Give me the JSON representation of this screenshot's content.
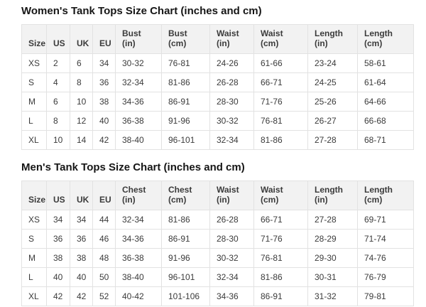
{
  "colors": {
    "header_background": "#f2f2f2",
    "border": "#e2e2e2",
    "text": "#3b3b3b",
    "title_text": "#161616",
    "page_background": "#ffffff"
  },
  "tables": {
    "women": {
      "title": "Women's Tank Tops Size Chart (inches and cm)",
      "columns": [
        [
          "Size"
        ],
        [
          "US"
        ],
        [
          "UK"
        ],
        [
          "EU"
        ],
        [
          "Bust",
          "(in)"
        ],
        [
          "Bust",
          "(cm)"
        ],
        [
          "Waist",
          "(in)"
        ],
        [
          "Waist",
          "(cm)"
        ],
        [
          "Length",
          "(in)"
        ],
        [
          "Length",
          "(cm)"
        ]
      ],
      "rows": [
        [
          "XS",
          "2",
          "6",
          "34",
          "30-32",
          "76-81",
          "24-26",
          "61-66",
          "23-24",
          "58-61"
        ],
        [
          "S",
          "4",
          "8",
          "36",
          "32-34",
          "81-86",
          "26-28",
          "66-71",
          "24-25",
          "61-64"
        ],
        [
          "M",
          "6",
          "10",
          "38",
          "34-36",
          "86-91",
          "28-30",
          "71-76",
          "25-26",
          "64-66"
        ],
        [
          "L",
          "8",
          "12",
          "40",
          "36-38",
          "91-96",
          "30-32",
          "76-81",
          "26-27",
          "66-68"
        ],
        [
          "XL",
          "10",
          "14",
          "42",
          "38-40",
          "96-101",
          "32-34",
          "81-86",
          "27-28",
          "68-71"
        ]
      ]
    },
    "men": {
      "title": "Men's Tank Tops Size Chart (inches and cm)",
      "columns": [
        [
          "Size"
        ],
        [
          "US"
        ],
        [
          "UK"
        ],
        [
          "EU"
        ],
        [
          "Chest",
          "(in)"
        ],
        [
          "Chest",
          "(cm)"
        ],
        [
          "Waist",
          "(in)"
        ],
        [
          "Waist",
          "(cm)"
        ],
        [
          "Length",
          "(in)"
        ],
        [
          "Length",
          "(cm)"
        ]
      ],
      "rows": [
        [
          "XS",
          "34",
          "34",
          "44",
          "32-34",
          "81-86",
          "26-28",
          "66-71",
          "27-28",
          "69-71"
        ],
        [
          "S",
          "36",
          "36",
          "46",
          "34-36",
          "86-91",
          "28-30",
          "71-76",
          "28-29",
          "71-74"
        ],
        [
          "M",
          "38",
          "38",
          "48",
          "36-38",
          "91-96",
          "30-32",
          "76-81",
          "29-30",
          "74-76"
        ],
        [
          "L",
          "40",
          "40",
          "50",
          "38-40",
          "96-101",
          "32-34",
          "81-86",
          "30-31",
          "76-79"
        ],
        [
          "XL",
          "42",
          "42",
          "52",
          "40-42",
          "101-106",
          "34-36",
          "86-91",
          "31-32",
          "79-81"
        ]
      ]
    }
  }
}
